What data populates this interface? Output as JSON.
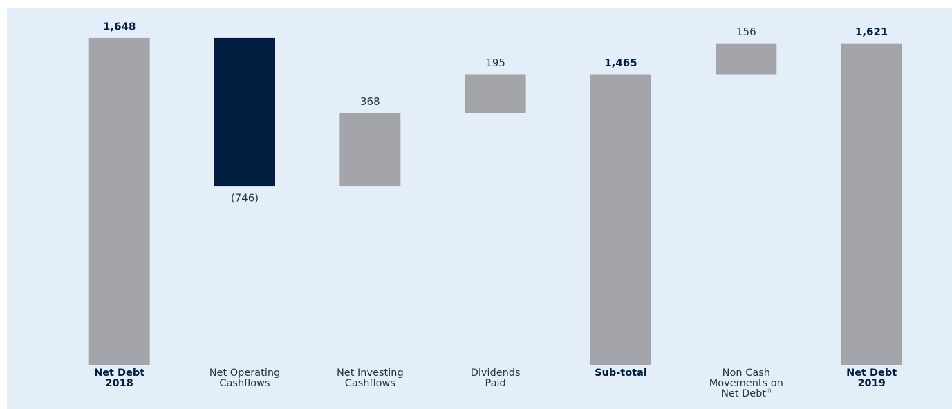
{
  "chart_data": {
    "type": "waterfall",
    "categories": [
      "Net Debt\n2018",
      "Net Operating\nCashflows",
      "Net Investing\nCashflows",
      "Dividends\nPaid",
      "Sub-total",
      "Non Cash\nMovements on\nNet Debt",
      "Net Debt\n2019"
    ],
    "category_notes": [
      null,
      null,
      null,
      null,
      null,
      "(i)",
      null
    ],
    "values": [
      1648,
      -746,
      368,
      195,
      1465,
      156,
      1621
    ],
    "value_labels": [
      "1,648",
      "(746)",
      "368",
      "195",
      "1,465",
      "156",
      "1,621"
    ],
    "is_total": [
      true,
      false,
      false,
      false,
      true,
      false,
      true
    ],
    "colors": {
      "total": "#a3a5ab",
      "increase": "#a3a5ab",
      "decrease": "#011e41"
    },
    "ylim": [
      0,
      1700
    ]
  }
}
